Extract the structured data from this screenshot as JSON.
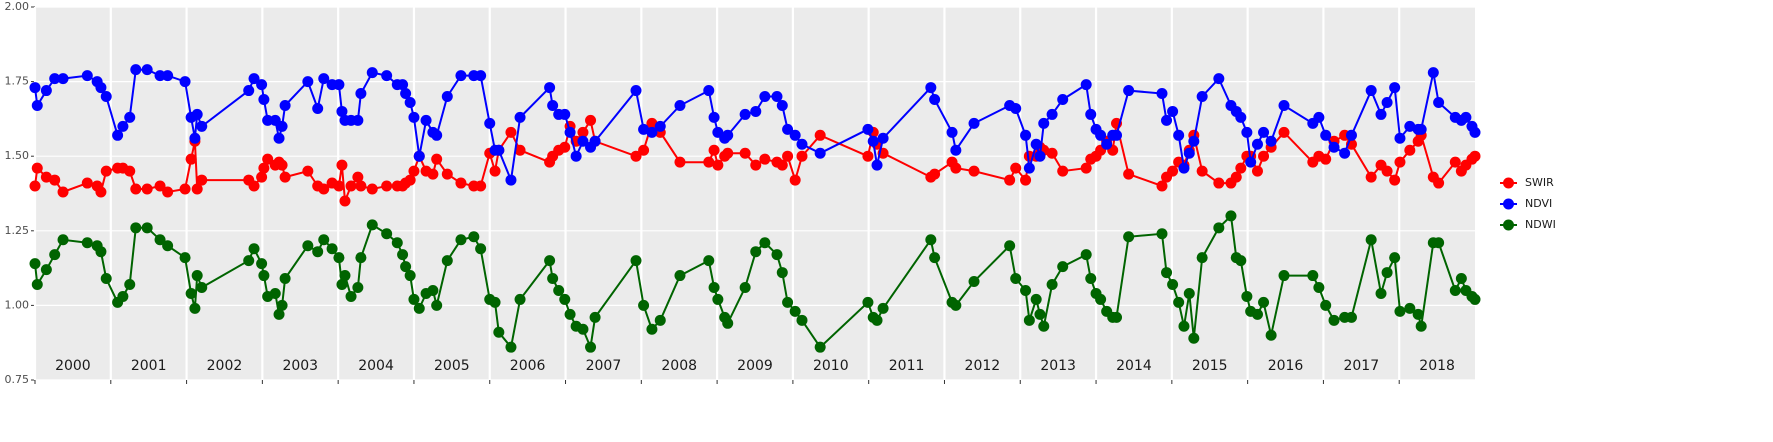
{
  "chart_data": {
    "type": "line",
    "x": [
      2000.0,
      2000.03,
      2000.15,
      2000.26,
      2000.37,
      2000.69,
      2000.82,
      2000.87,
      2000.94,
      2001.09,
      2001.16,
      2001.25,
      2001.33,
      2001.48,
      2001.65,
      2001.75,
      2001.98,
      2002.06,
      2002.11,
      2002.14,
      2002.2,
      2002.82,
      2002.89,
      2002.99,
      2003.02,
      2003.07,
      2003.17,
      2003.22,
      2003.26,
      2003.3,
      2003.6,
      2003.73,
      2003.81,
      2003.92,
      2004.01,
      2004.05,
      2004.09,
      2004.17,
      2004.26,
      2004.3,
      2004.45,
      2004.64,
      2004.78,
      2004.85,
      2004.89,
      2004.95,
      2005.0,
      2005.07,
      2005.16,
      2005.25,
      2005.3,
      2005.44,
      2005.62,
      2005.79,
      2005.88,
      2006.0,
      2006.07,
      2006.12,
      2006.28,
      2006.4,
      2006.79,
      2006.83,
      2006.91,
      2006.99,
      2007.06,
      2007.14,
      2007.23,
      2007.33,
      2007.39,
      2007.93,
      2008.03,
      2008.14,
      2008.25,
      2008.51,
      2008.89,
      2008.96,
      2009.01,
      2009.1,
      2009.14,
      2009.37,
      2009.51,
      2009.63,
      2009.79,
      2009.86,
      2009.93,
      2010.03,
      2010.12,
      2010.36,
      2010.99,
      2011.06,
      2011.11,
      2011.19,
      2011.82,
      2011.87,
      2012.1,
      2012.15,
      2012.39,
      2012.86,
      2012.94,
      2013.07,
      2013.12,
      2013.21,
      2013.26,
      2013.31,
      2013.42,
      2013.56,
      2013.87,
      2013.93,
      2014.0,
      2014.06,
      2014.14,
      2014.22,
      2014.27,
      2014.43,
      2014.87,
      2014.93,
      2015.01,
      2015.09,
      2015.16,
      2015.23,
      2015.29,
      2015.4,
      2015.62,
      2015.78,
      2015.85,
      2015.91,
      2015.99,
      2016.04,
      2016.13,
      2016.21,
      2016.31,
      2016.48,
      2016.86,
      2016.94,
      2017.03,
      2017.14,
      2017.28,
      2017.37,
      2017.63,
      2017.76,
      2017.84,
      2017.94,
      2018.01,
      2018.14,
      2018.25,
      2018.29,
      2018.45,
      2018.52,
      2018.74,
      2018.82,
      2018.88,
      2018.96,
      2019.0
    ],
    "series": [
      {
        "name": "SWIR",
        "color": "#ff0000",
        "values": [
          1.4,
          1.46,
          1.43,
          1.42,
          1.38,
          1.41,
          1.4,
          1.38,
          1.45,
          1.46,
          1.46,
          1.45,
          1.39,
          1.39,
          1.4,
          1.38,
          1.39,
          1.49,
          1.55,
          1.39,
          1.42,
          1.42,
          1.4,
          1.43,
          1.46,
          1.49,
          1.47,
          1.48,
          1.47,
          1.43,
          1.45,
          1.4,
          1.39,
          1.41,
          1.4,
          1.47,
          1.35,
          1.4,
          1.43,
          1.4,
          1.39,
          1.4,
          1.4,
          1.4,
          1.41,
          1.42,
          1.45,
          1.5,
          1.45,
          1.44,
          1.49,
          1.44,
          1.41,
          1.4,
          1.4,
          1.51,
          1.45,
          1.52,
          1.58,
          1.52,
          1.48,
          1.5,
          1.52,
          1.53,
          1.6,
          1.55,
          1.58,
          1.62,
          1.55,
          1.5,
          1.52,
          1.61,
          1.58,
          1.48,
          1.48,
          1.52,
          1.47,
          1.5,
          1.51,
          1.51,
          1.47,
          1.49,
          1.48,
          1.47,
          1.5,
          1.42,
          1.5,
          1.57,
          1.5,
          1.58,
          1.54,
          1.51,
          1.43,
          1.44,
          1.48,
          1.46,
          1.45,
          1.42,
          1.46,
          1.42,
          1.5,
          1.5,
          1.53,
          1.52,
          1.51,
          1.45,
          1.46,
          1.49,
          1.5,
          1.52,
          1.55,
          1.52,
          1.61,
          1.44,
          1.4,
          1.43,
          1.45,
          1.48,
          1.47,
          1.52,
          1.57,
          1.45,
          1.41,
          1.41,
          1.43,
          1.46,
          1.5,
          1.5,
          1.45,
          1.5,
          1.53,
          1.58,
          1.48,
          1.5,
          1.49,
          1.55,
          1.57,
          1.54,
          1.43,
          1.47,
          1.45,
          1.42,
          1.48,
          1.52,
          1.55,
          1.57,
          1.43,
          1.41,
          1.48,
          1.45,
          1.47,
          1.49,
          1.5
        ]
      },
      {
        "name": "NDVI",
        "color": "#0000ff",
        "values": [
          1.73,
          1.67,
          1.72,
          1.76,
          1.76,
          1.77,
          1.75,
          1.73,
          1.7,
          1.57,
          1.6,
          1.63,
          1.79,
          1.79,
          1.77,
          1.77,
          1.75,
          1.63,
          1.56,
          1.64,
          1.6,
          1.72,
          1.76,
          1.74,
          1.69,
          1.62,
          1.62,
          1.56,
          1.6,
          1.67,
          1.75,
          1.66,
          1.76,
          1.74,
          1.74,
          1.65,
          1.62,
          1.62,
          1.62,
          1.71,
          1.78,
          1.77,
          1.74,
          1.74,
          1.71,
          1.68,
          1.63,
          1.5,
          1.62,
          1.58,
          1.57,
          1.7,
          1.77,
          1.77,
          1.77,
          1.61,
          1.52,
          1.52,
          1.42,
          1.63,
          1.73,
          1.67,
          1.64,
          1.64,
          1.58,
          1.5,
          1.55,
          1.53,
          1.55,
          1.72,
          1.59,
          1.58,
          1.6,
          1.67,
          1.72,
          1.63,
          1.58,
          1.56,
          1.57,
          1.64,
          1.65,
          1.7,
          1.7,
          1.67,
          1.59,
          1.57,
          1.54,
          1.51,
          1.59,
          1.55,
          1.47,
          1.56,
          1.73,
          1.69,
          1.58,
          1.52,
          1.61,
          1.67,
          1.66,
          1.57,
          1.46,
          1.54,
          1.5,
          1.61,
          1.64,
          1.69,
          1.74,
          1.64,
          1.59,
          1.57,
          1.54,
          1.57,
          1.57,
          1.72,
          1.71,
          1.62,
          1.65,
          1.57,
          1.46,
          1.51,
          1.55,
          1.7,
          1.76,
          1.67,
          1.65,
          1.63,
          1.58,
          1.48,
          1.54,
          1.58,
          1.55,
          1.67,
          1.61,
          1.63,
          1.57,
          1.53,
          1.51,
          1.57,
          1.72,
          1.64,
          1.68,
          1.73,
          1.56,
          1.6,
          1.59,
          1.59,
          1.78,
          1.68,
          1.63,
          1.62,
          1.63,
          1.6,
          1.58
        ]
      },
      {
        "name": "NDWI",
        "color": "#006400",
        "values": [
          1.14,
          1.07,
          1.12,
          1.17,
          1.22,
          1.21,
          1.2,
          1.18,
          1.09,
          1.01,
          1.03,
          1.07,
          1.26,
          1.26,
          1.22,
          1.2,
          1.16,
          1.04,
          0.99,
          1.1,
          1.06,
          1.15,
          1.19,
          1.14,
          1.1,
          1.03,
          1.04,
          0.97,
          1.0,
          1.09,
          1.2,
          1.18,
          1.22,
          1.19,
          1.16,
          1.07,
          1.1,
          1.03,
          1.06,
          1.16,
          1.27,
          1.24,
          1.21,
          1.17,
          1.13,
          1.1,
          1.02,
          0.99,
          1.04,
          1.05,
          1.0,
          1.15,
          1.22,
          1.23,
          1.19,
          1.02,
          1.01,
          0.91,
          0.86,
          1.02,
          1.15,
          1.09,
          1.05,
          1.02,
          0.97,
          0.93,
          0.92,
          0.86,
          0.96,
          1.15,
          1.0,
          0.92,
          0.95,
          1.1,
          1.15,
          1.06,
          1.02,
          0.96,
          0.94,
          1.06,
          1.18,
          1.21,
          1.17,
          1.11,
          1.01,
          0.98,
          0.95,
          0.86,
          1.01,
          0.96,
          0.95,
          0.99,
          1.22,
          1.16,
          1.01,
          1.0,
          1.08,
          1.2,
          1.09,
          1.05,
          0.95,
          1.02,
          0.97,
          0.93,
          1.07,
          1.13,
          1.17,
          1.09,
          1.04,
          1.02,
          0.98,
          0.96,
          0.96,
          1.23,
          1.24,
          1.11,
          1.07,
          1.01,
          0.93,
          1.04,
          0.89,
          1.16,
          1.26,
          1.3,
          1.16,
          1.15,
          1.03,
          0.98,
          0.97,
          1.01,
          0.9,
          1.1,
          1.1,
          1.06,
          1.0,
          0.95,
          0.96,
          0.96,
          1.22,
          1.04,
          1.11,
          1.16,
          0.98,
          0.99,
          0.97,
          0.93,
          1.21,
          1.21,
          1.05,
          1.09,
          1.05,
          1.03,
          1.02
        ]
      }
    ],
    "xlim": [
      2000,
      2019
    ],
    "xticks": [
      2000,
      2001,
      2002,
      2003,
      2004,
      2005,
      2006,
      2007,
      2008,
      2009,
      2010,
      2011,
      2012,
      2013,
      2014,
      2015,
      2016,
      2017,
      2018
    ],
    "ylim": [
      0.75,
      2.0
    ],
    "yticks": [
      0.75,
      {
        "value": 1,
        "label": "1.00"
      },
      1.25,
      {
        "value": 1.5,
        "label": "1.50"
      },
      1.75,
      {
        "value": 2,
        "label": "2.00"
      }
    ],
    "grid": true,
    "legend": "right"
  }
}
